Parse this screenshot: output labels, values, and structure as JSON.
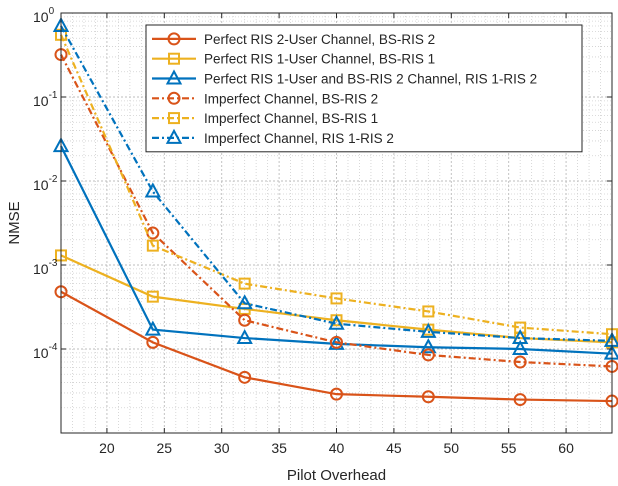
{
  "chart_data": {
    "type": "line",
    "title": "",
    "xlabel": "Pilot Overhead",
    "ylabel": "NMSE",
    "xlim": [
      16,
      64
    ],
    "ylim": [
      1e-05,
      1
    ],
    "yscale": "log",
    "grid": true,
    "minor_grid": true,
    "legend_position": "top-right",
    "x_ticks": [
      20,
      25,
      30,
      35,
      40,
      45,
      50,
      55,
      60
    ],
    "x_tick_labels": [
      "20",
      "25",
      "30",
      "35",
      "40",
      "45",
      "50",
      "55",
      "60"
    ],
    "y_ticks": [
      0.0001,
      0.001,
      0.01,
      0.1,
      1
    ],
    "y_tick_labels": [
      {
        "base": "10",
        "exp": "-4"
      },
      {
        "base": "10",
        "exp": "-3"
      },
      {
        "base": "10",
        "exp": "-2"
      },
      {
        "base": "10",
        "exp": "-1"
      },
      {
        "base": "10",
        "exp": "0"
      }
    ],
    "x": [
      16,
      24,
      32,
      40,
      48,
      56,
      64
    ],
    "series": [
      {
        "name": "Perfect RIS 2-User Channel, BS-RIS 2",
        "color": "#D95319",
        "dash": "solid",
        "marker": "circle",
        "values": [
          0.00048,
          0.00012,
          4.6e-05,
          2.9e-05,
          2.7e-05,
          2.5e-05,
          2.4e-05
        ]
      },
      {
        "name": "Perfect RIS 1-User Channel, BS-RIS 1",
        "color": "#EDB120",
        "dash": "solid",
        "marker": "square",
        "values": [
          0.0013,
          0.00042,
          0.0003,
          0.00022,
          0.00017,
          0.000135,
          0.00012
        ]
      },
      {
        "name": "Perfect RIS 1-User and BS-RIS 2 Channel, RIS 1-RIS 2",
        "color": "#0072BD",
        "dash": "solid",
        "marker": "triangle",
        "values": [
          0.026,
          0.00017,
          0.000135,
          0.000115,
          0.000105,
          0.0001,
          8.8e-05
        ]
      },
      {
        "name": "Imperfect Channel, BS-RIS 2",
        "color": "#D95319",
        "dash": "dashdot",
        "marker": "circle",
        "values": [
          0.32,
          0.0024,
          0.00022,
          0.00012,
          8.5e-05,
          7e-05,
          6.2e-05
        ]
      },
      {
        "name": "Imperfect Channel, BS-RIS 1",
        "color": "#EDB120",
        "dash": "dashdot",
        "marker": "square",
        "values": [
          0.55,
          0.0017,
          0.0006,
          0.0004,
          0.00028,
          0.00018,
          0.00015
        ]
      },
      {
        "name": "Imperfect Channel, RIS 1-RIS 2",
        "color": "#0072BD",
        "dash": "dashdot",
        "marker": "triangle",
        "values": [
          0.7,
          0.0075,
          0.00035,
          0.0002,
          0.00016,
          0.000135,
          0.000125
        ]
      }
    ]
  }
}
